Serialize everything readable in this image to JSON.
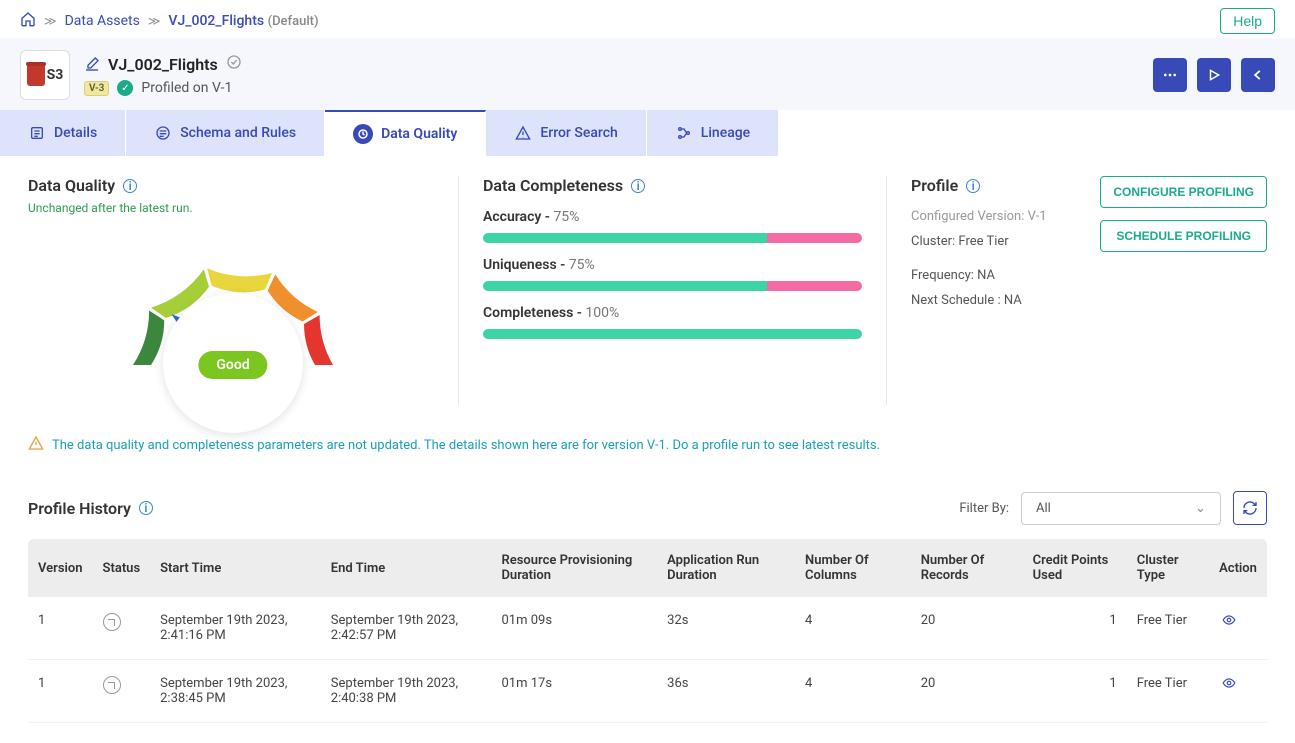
{
  "colors": {
    "primary": "#3849b8",
    "green": "#1aab8b",
    "barGreen": "#3cd3a5",
    "barPink": "#f36ba0",
    "gaugeRed": "#e2362f",
    "gaugeOrange": "#ef8f2e",
    "gaugeYellow": "#e8d63c",
    "gaugeLime": "#a6ce39",
    "gaugeGreen": "#3a873d"
  },
  "breadcrumb": {
    "home": "⌂",
    "link1": "Data Assets",
    "link2": "VJ_002_Flights",
    "suffix": "(Default)"
  },
  "helpLabel": "Help",
  "header": {
    "s3Label": "S3",
    "title": "VJ_002_Flights",
    "versionBadge": "V-3",
    "profiledText": "Profiled on V-1"
  },
  "tabs": {
    "details": "Details",
    "schema": "Schema and Rules",
    "dq": "Data Quality",
    "error": "Error Search",
    "lineage": "Lineage"
  },
  "dataQuality": {
    "title": "Data Quality",
    "subtitle": "Unchanged after the latest run.",
    "gaugeLabel": "Good",
    "needlePct": 78
  },
  "completeness": {
    "title": "Data Completeness",
    "metrics": [
      {
        "label": "Accuracy",
        "value": "75%",
        "pct": 75
      },
      {
        "label": "Uniqueness",
        "value": "75%",
        "pct": 75
      },
      {
        "label": "Completeness",
        "value": "100%",
        "pct": 100
      }
    ]
  },
  "profile": {
    "title": "Profile",
    "configuredVersion": "Configured Version: V-1",
    "cluster": "Cluster: Free Tier",
    "frequency": "Frequency: NA",
    "nextSchedule": "Next Schedule : NA",
    "configureBtn": "CONFIGURE PROFILING",
    "scheduleBtn": "SCHEDULE PROFILING"
  },
  "alert": "The data quality and completeness parameters are not updated. The details shown here are for version V-1. Do a profile run to see latest results.",
  "history": {
    "title": "Profile History",
    "filterLabel": "Filter By:",
    "filterValue": "All",
    "columns": [
      "Version",
      "Status",
      "Start Time",
      "End Time",
      "Resource Provisioning Duration",
      "Application Run Duration",
      "Number Of Columns",
      "Number Of Records",
      "Credit Points Used",
      "Cluster Type",
      "Action"
    ],
    "rows": [
      {
        "version": "1",
        "start": "September 19th 2023, 2:41:16 PM",
        "end": "September 19th 2023, 2:42:57 PM",
        "provision": "01m 09s",
        "run": "32s",
        "cols": "4",
        "recs": "20",
        "credits": "1",
        "cluster": "Free Tier"
      },
      {
        "version": "1",
        "start": "September 19th 2023, 2:38:45 PM",
        "end": "September 19th 2023, 2:40:38 PM",
        "provision": "01m 17s",
        "run": "36s",
        "cols": "4",
        "recs": "20",
        "credits": "1",
        "cluster": "Free Tier"
      }
    ]
  }
}
